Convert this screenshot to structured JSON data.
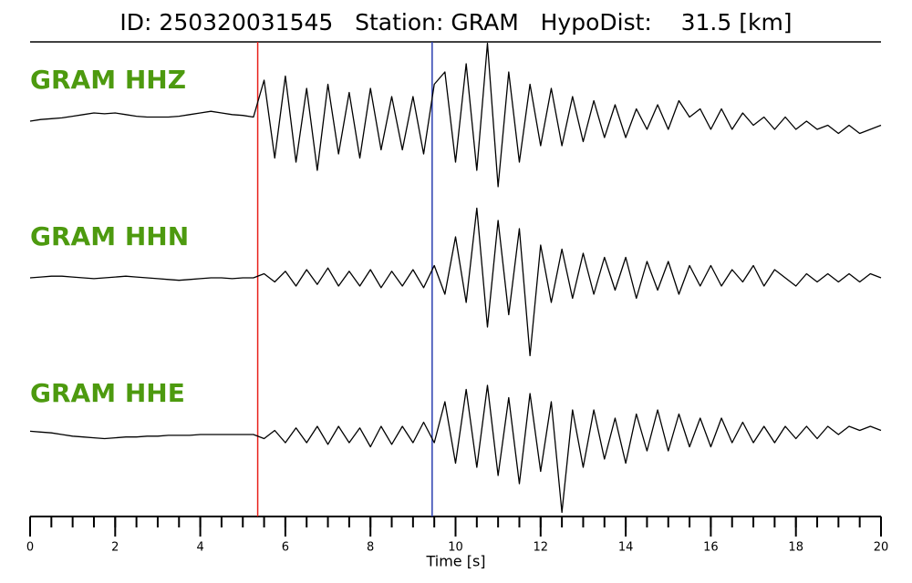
{
  "chart_data": {
    "type": "line",
    "title": "ID: 250320031545   Station: GRAM   HypoDist:    31.5 [km]",
    "xlabel": "Time [s]",
    "xlim": [
      0,
      20
    ],
    "ylim": [
      -1,
      1
    ],
    "xticks": [
      0,
      2,
      4,
      6,
      8,
      10,
      12,
      14,
      16,
      18,
      20
    ],
    "xticks_minor": [
      0,
      0.5,
      1,
      1.5,
      2,
      2.5,
      3,
      3.5,
      4,
      4.5,
      5,
      5.5,
      6,
      6.5,
      7,
      7.5,
      8,
      8.5,
      9,
      9.5,
      10,
      10.5,
      11,
      11.5,
      12,
      12.5,
      13,
      13.5,
      14,
      14.5,
      15,
      15.5,
      16,
      16.5,
      17,
      17.5,
      18,
      18.5,
      19,
      19.5,
      20
    ],
    "picks": [
      {
        "value": 5.35,
        "color": "#e8201a"
      },
      {
        "value": 9.45,
        "color": "#2a3fb0"
      }
    ],
    "x": [
      0,
      0.25,
      0.5,
      0.75,
      1,
      1.25,
      1.5,
      1.75,
      2,
      2.25,
      2.5,
      2.75,
      3,
      3.25,
      3.5,
      3.75,
      4,
      4.25,
      4.5,
      4.75,
      5,
      5.25,
      5.5,
      5.75,
      6,
      6.25,
      6.5,
      6.75,
      7,
      7.25,
      7.5,
      7.75,
      8,
      8.25,
      8.5,
      8.75,
      9,
      9.25,
      9.5,
      9.75,
      10,
      10.25,
      10.5,
      10.75,
      11,
      11.25,
      11.5,
      11.75,
      12,
      12.25,
      12.5,
      12.75,
      13,
      13.25,
      13.5,
      13.75,
      14,
      14.25,
      14.5,
      14.75,
      15,
      15.25,
      15.5,
      15.75,
      16,
      16.25,
      16.5,
      16.75,
      17,
      17.25,
      17.5,
      17.75,
      18,
      18.25,
      18.5,
      18.75,
      19,
      19.25,
      19.5,
      19.75,
      20
    ],
    "series": [
      {
        "name": "GRAM HHZ",
        "color": "#000000",
        "label_color": "#4d9a0f",
        "values": [
          0.0,
          0.02,
          0.03,
          0.04,
          0.06,
          0.08,
          0.1,
          0.09,
          0.1,
          0.08,
          0.06,
          0.05,
          0.05,
          0.05,
          0.06,
          0.08,
          0.1,
          0.12,
          0.1,
          0.08,
          0.07,
          0.05,
          0.5,
          -0.45,
          0.55,
          -0.5,
          0.4,
          -0.6,
          0.45,
          -0.4,
          0.35,
          -0.45,
          0.4,
          -0.35,
          0.3,
          -0.35,
          0.3,
          -0.4,
          0.45,
          0.6,
          -0.5,
          0.7,
          -0.6,
          0.95,
          -0.8,
          0.6,
          -0.5,
          0.45,
          -0.3,
          0.4,
          -0.3,
          0.3,
          -0.25,
          0.25,
          -0.2,
          0.2,
          -0.2,
          0.15,
          -0.1,
          0.2,
          -0.1,
          0.25,
          0.05,
          0.15,
          -0.1,
          0.15,
          -0.1,
          0.1,
          -0.05,
          0.05,
          -0.1,
          0.05,
          -0.1,
          0.0,
          -0.1,
          -0.05,
          -0.15,
          -0.05,
          -0.15,
          -0.1,
          -0.05
        ]
      },
      {
        "name": "GRAM HHN",
        "color": "#000000",
        "label_color": "#4d9a0f",
        "values": [
          0,
          0.01,
          0.02,
          0.02,
          0.01,
          0,
          -0.01,
          0,
          0.01,
          0.02,
          0.01,
          0,
          -0.01,
          -0.02,
          -0.03,
          -0.02,
          -0.01,
          0,
          0,
          -0.01,
          0,
          0,
          0.05,
          -0.05,
          0.08,
          -0.1,
          0.1,
          -0.08,
          0.12,
          -0.1,
          0.08,
          -0.1,
          0.1,
          -0.12,
          0.08,
          -0.1,
          0.1,
          -0.12,
          0.15,
          -0.2,
          0.5,
          -0.3,
          0.85,
          -0.6,
          0.7,
          -0.45,
          0.6,
          -0.95,
          0.4,
          -0.3,
          0.35,
          -0.25,
          0.3,
          -0.2,
          0.25,
          -0.15,
          0.25,
          -0.25,
          0.2,
          -0.15,
          0.2,
          -0.2,
          0.15,
          -0.1,
          0.15,
          -0.1,
          0.1,
          -0.05,
          0.15,
          -0.1,
          0.1,
          0,
          -0.1,
          0.05,
          -0.05,
          0.05,
          -0.05,
          0.05,
          -0.05,
          0.05,
          0
        ]
      },
      {
        "name": "GRAM HHE",
        "color": "#000000",
        "label_color": "#4d9a0f",
        "values": [
          0.04,
          0.03,
          0.02,
          0,
          -0.02,
          -0.03,
          -0.04,
          -0.05,
          -0.04,
          -0.03,
          -0.03,
          -0.02,
          -0.02,
          -0.01,
          -0.01,
          -0.01,
          0,
          0,
          0,
          0,
          0,
          0,
          -0.05,
          0.05,
          -0.1,
          0.08,
          -0.1,
          0.1,
          -0.12,
          0.1,
          -0.1,
          0.08,
          -0.15,
          0.1,
          -0.12,
          0.1,
          -0.1,
          0.15,
          -0.1,
          0.4,
          -0.35,
          0.55,
          -0.4,
          0.6,
          -0.5,
          0.45,
          -0.6,
          0.5,
          -0.45,
          0.4,
          -0.95,
          0.3,
          -0.4,
          0.3,
          -0.3,
          0.2,
          -0.35,
          0.25,
          -0.2,
          0.3,
          -0.2,
          0.25,
          -0.15,
          0.2,
          -0.15,
          0.2,
          -0.1,
          0.15,
          -0.1,
          0.1,
          -0.1,
          0.1,
          -0.05,
          0.1,
          -0.05,
          0.1,
          0,
          0.1,
          0.05,
          0.1,
          0.05
        ]
      }
    ]
  }
}
